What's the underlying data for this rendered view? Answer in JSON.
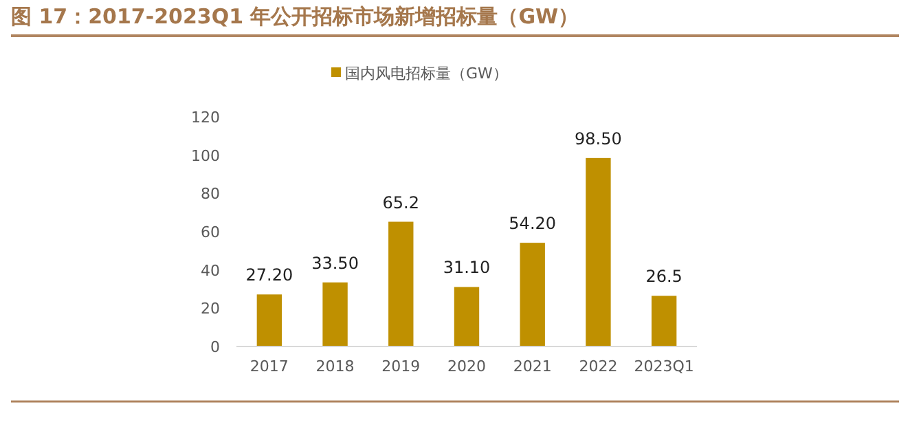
{
  "chart_data": {
    "type": "bar",
    "title": "图 17：2017-2023Q1 年公开招标市场新增招标量（GW）",
    "categories": [
      "2017",
      "2018",
      "2019",
      "2020",
      "2021",
      "2022",
      "2023Q1"
    ],
    "series": [
      {
        "name": "国内风电招标量（GW）",
        "color": "#bf9000",
        "values": [
          27.2,
          33.5,
          65.2,
          31.1,
          54.2,
          98.5,
          26.5
        ],
        "value_labels": [
          "27.20",
          "33.50",
          "65.2",
          "31.10",
          "54.20",
          "98.50",
          "26.5"
        ]
      }
    ],
    "ylim": [
      0,
      120
    ],
    "yticks": [
      0,
      20,
      40,
      60,
      80,
      100,
      120
    ],
    "grid": false,
    "legend": "top"
  }
}
